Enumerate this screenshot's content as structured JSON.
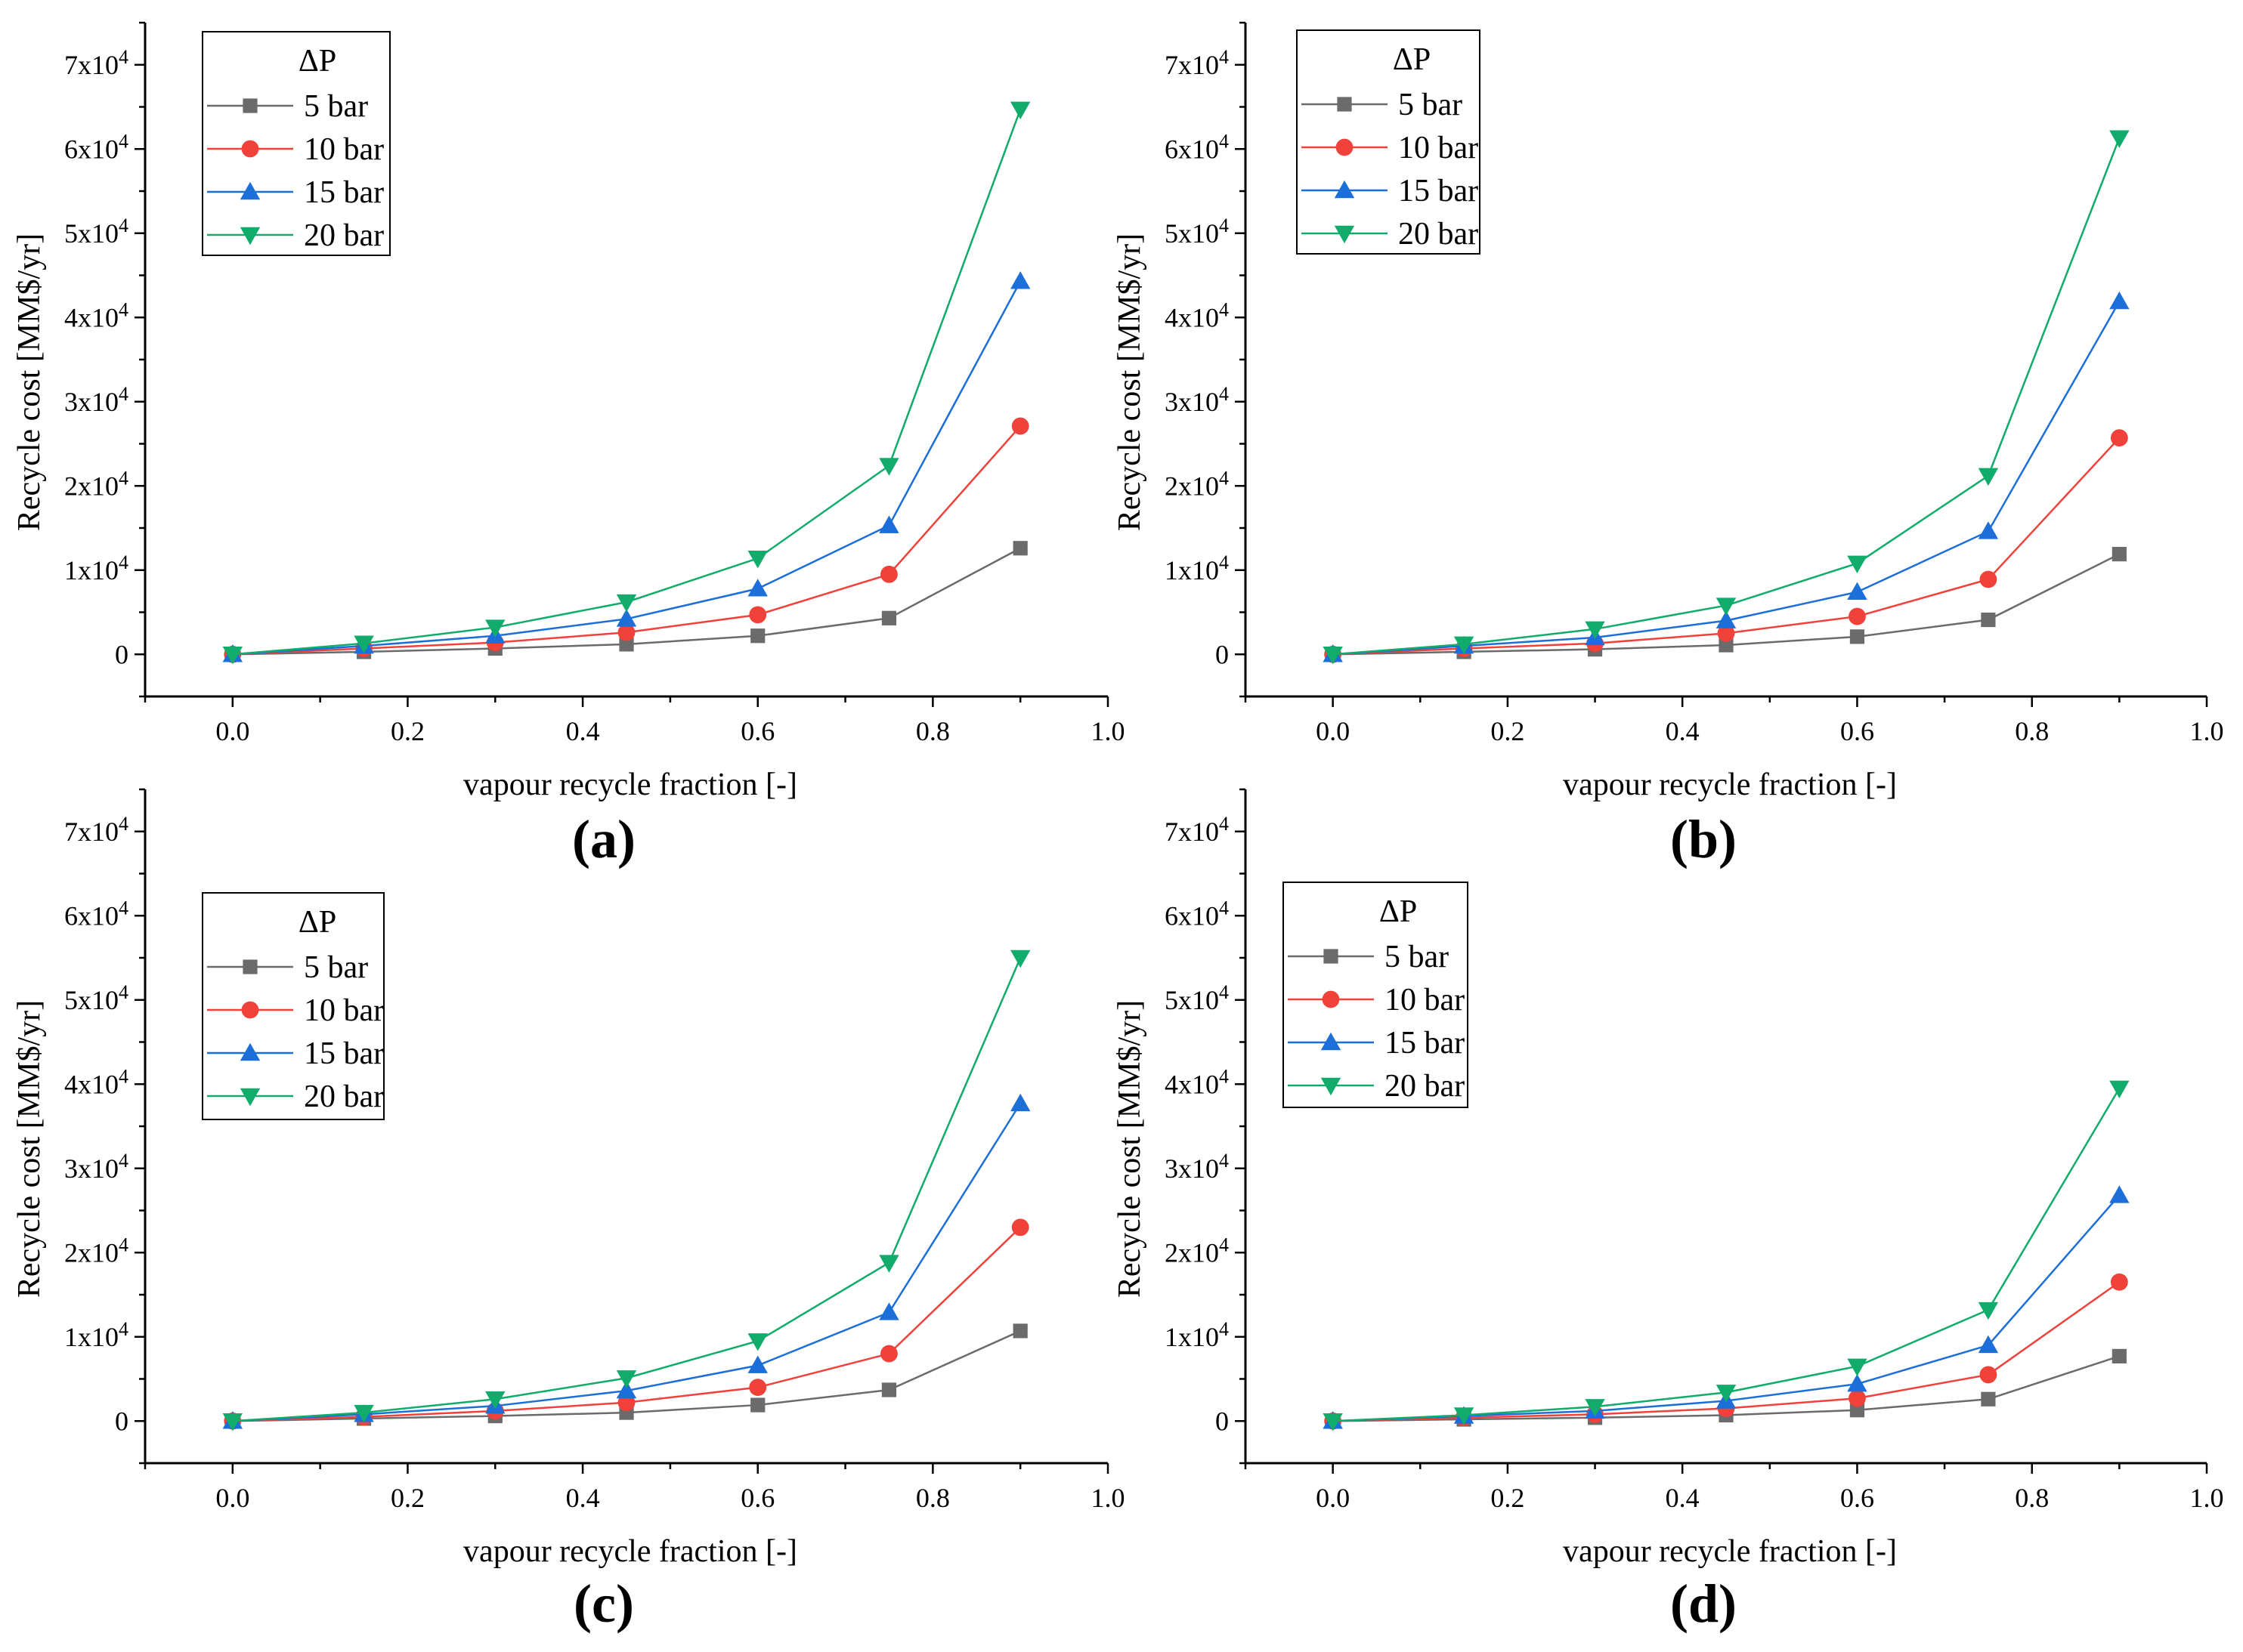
{
  "figure": {
    "panel_count": 4
  },
  "chart_data": [
    {
      "panel": "(a)",
      "type": "line",
      "xlabel": "vapour recycle fraction [-]",
      "ylabel": "Recycle cost [MM$/yr]",
      "xlim": [
        -0.1,
        1.0
      ],
      "ylim": [
        -5000,
        75000
      ],
      "xticks": [
        "0.0",
        "0.2",
        "0.4",
        "0.6",
        "0.8",
        "1.0"
      ],
      "yticks": [
        {
          "mant": "0",
          "exp": ""
        },
        {
          "mant": "1x10",
          "exp": "4"
        },
        {
          "mant": "2x10",
          "exp": "4"
        },
        {
          "mant": "3x10",
          "exp": "4"
        },
        {
          "mant": "4x10",
          "exp": "4"
        },
        {
          "mant": "5x10",
          "exp": "4"
        },
        {
          "mant": "6x10",
          "exp": "4"
        },
        {
          "mant": "7x10",
          "exp": "4"
        }
      ],
      "legend_title": "ΔP",
      "legend_position": "top-left",
      "x": [
        0,
        0.15,
        0.3,
        0.45,
        0.6,
        0.75,
        0.9
      ],
      "series": [
        {
          "name": "5 bar",
          "color": "#6b6b6b",
          "marker": "square",
          "values": [
            0,
            300,
            700,
            1200,
            2200,
            4300,
            12600
          ]
        },
        {
          "name": "10 bar",
          "color": "#f0413a",
          "marker": "circle",
          "values": [
            0,
            700,
            1400,
            2600,
            4700,
            9500,
            27100
          ]
        },
        {
          "name": "15 bar",
          "color": "#1c6ed8",
          "marker": "triangle-up",
          "values": [
            0,
            1000,
            2200,
            4200,
            7800,
            15300,
            44300
          ]
        },
        {
          "name": "20 bar",
          "color": "#11ac6b",
          "marker": "triangle-down",
          "values": [
            0,
            1300,
            3200,
            6200,
            11400,
            22400,
            64700
          ]
        }
      ]
    },
    {
      "panel": "(b)",
      "type": "line",
      "xlabel": "vapour recycle fraction [-]",
      "ylabel": "Recycle cost [MM$/yr]",
      "xlim": [
        -0.1,
        1.0
      ],
      "ylim": [
        -5000,
        75000
      ],
      "xticks": [
        "0.0",
        "0.2",
        "0.4",
        "0.6",
        "0.8",
        "1.0"
      ],
      "yticks": [
        {
          "mant": "0",
          "exp": ""
        },
        {
          "mant": "1x10",
          "exp": "4"
        },
        {
          "mant": "2x10",
          "exp": "4"
        },
        {
          "mant": "3x10",
          "exp": "4"
        },
        {
          "mant": "4x10",
          "exp": "4"
        },
        {
          "mant": "5x10",
          "exp": "4"
        },
        {
          "mant": "6x10",
          "exp": "4"
        },
        {
          "mant": "7x10",
          "exp": "4"
        }
      ],
      "legend_title": "ΔP",
      "legend_position": "top-left",
      "x": [
        0,
        0.15,
        0.3,
        0.45,
        0.6,
        0.75,
        0.9
      ],
      "series": [
        {
          "name": "5 bar",
          "color": "#6b6b6b",
          "marker": "square",
          "values": [
            0,
            300,
            600,
            1100,
            2100,
            4100,
            11900
          ]
        },
        {
          "name": "10 bar",
          "color": "#f0413a",
          "marker": "circle",
          "values": [
            0,
            700,
            1300,
            2500,
            4500,
            8900,
            25700
          ]
        },
        {
          "name": "15 bar",
          "color": "#1c6ed8",
          "marker": "triangle-up",
          "values": [
            0,
            1000,
            2000,
            4000,
            7400,
            14600,
            41900
          ]
        },
        {
          "name": "20 bar",
          "color": "#11ac6b",
          "marker": "triangle-down",
          "values": [
            0,
            1200,
            3000,
            5800,
            10800,
            21200,
            61300
          ]
        }
      ]
    },
    {
      "panel": "(c)",
      "type": "line",
      "xlabel": "vapour recycle fraction [-]",
      "ylabel": "Recycle cost [MM$/yr]",
      "xlim": [
        -0.1,
        1.0
      ],
      "ylim": [
        -5000,
        75000
      ],
      "xticks": [
        "0.0",
        "0.2",
        "0.4",
        "0.6",
        "0.8",
        "1.0"
      ],
      "yticks": [
        {
          "mant": "0",
          "exp": ""
        },
        {
          "mant": "1x10",
          "exp": "4"
        },
        {
          "mant": "2x10",
          "exp": "4"
        },
        {
          "mant": "3x10",
          "exp": "4"
        },
        {
          "mant": "4x10",
          "exp": "4"
        },
        {
          "mant": "5x10",
          "exp": "4"
        },
        {
          "mant": "6x10",
          "exp": "4"
        },
        {
          "mant": "7x10",
          "exp": "4"
        }
      ],
      "legend_title": "ΔP",
      "legend_position": "top-left",
      "x": [
        0,
        0.15,
        0.3,
        0.45,
        0.6,
        0.75,
        0.9
      ],
      "series": [
        {
          "name": "5 bar",
          "color": "#6b6b6b",
          "marker": "square",
          "values": [
            0,
            300,
            600,
            1000,
            1900,
            3700,
            10700
          ]
        },
        {
          "name": "10 bar",
          "color": "#f0413a",
          "marker": "circle",
          "values": [
            0,
            500,
            1200,
            2200,
            4000,
            8000,
            23000
          ]
        },
        {
          "name": "15 bar",
          "color": "#1c6ed8",
          "marker": "triangle-up",
          "values": [
            0,
            800,
            1800,
            3600,
            6600,
            12900,
            37700
          ]
        },
        {
          "name": "20 bar",
          "color": "#11ac6b",
          "marker": "triangle-down",
          "values": [
            0,
            1000,
            2600,
            5100,
            9500,
            18800,
            55000
          ]
        }
      ]
    },
    {
      "panel": "(d)",
      "type": "line",
      "xlabel": "vapour recycle fraction [-]",
      "ylabel": "Recycle cost [MM$/yr]",
      "xlim": [
        -0.1,
        1.0
      ],
      "ylim": [
        -5000,
        75000
      ],
      "xticks": [
        "0.0",
        "0.2",
        "0.4",
        "0.6",
        "0.8",
        "1.0"
      ],
      "yticks": [
        {
          "mant": "0",
          "exp": ""
        },
        {
          "mant": "1x10",
          "exp": "4"
        },
        {
          "mant": "2x10",
          "exp": "4"
        },
        {
          "mant": "3x10",
          "exp": "4"
        },
        {
          "mant": "4x10",
          "exp": "4"
        },
        {
          "mant": "5x10",
          "exp": "4"
        },
        {
          "mant": "6x10",
          "exp": "4"
        },
        {
          "mant": "7x10",
          "exp": "4"
        }
      ],
      "legend_title": "ΔP",
      "legend_position": "top-left",
      "x": [
        0,
        0.15,
        0.3,
        0.45,
        0.6,
        0.75,
        0.9
      ],
      "series": [
        {
          "name": "5 bar",
          "color": "#6b6b6b",
          "marker": "square",
          "values": [
            0,
            200,
            400,
            700,
            1300,
            2600,
            7700
          ]
        },
        {
          "name": "10 bar",
          "color": "#f0413a",
          "marker": "circle",
          "values": [
            0,
            400,
            800,
            1500,
            2700,
            5500,
            16500
          ]
        },
        {
          "name": "15 bar",
          "color": "#1c6ed8",
          "marker": "triangle-up",
          "values": [
            0,
            600,
            1200,
            2400,
            4400,
            9000,
            26800
          ]
        },
        {
          "name": "20 bar",
          "color": "#11ac6b",
          "marker": "triangle-down",
          "values": [
            0,
            700,
            1700,
            3400,
            6500,
            13200,
            39500
          ]
        }
      ]
    }
  ]
}
